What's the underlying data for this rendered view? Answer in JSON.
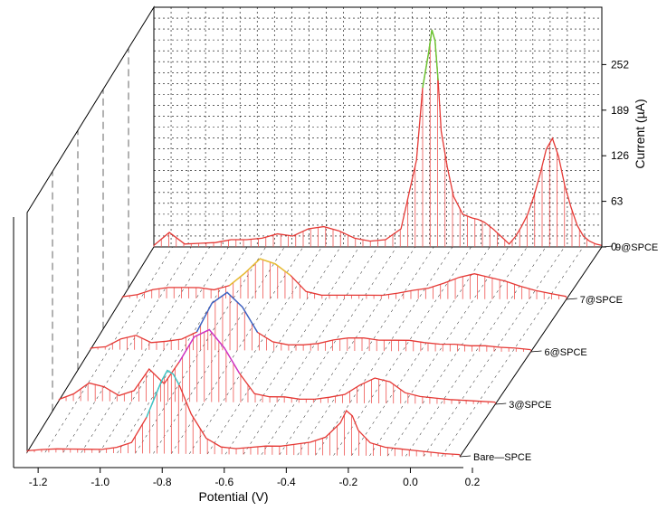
{
  "chart_data": {
    "type": "line",
    "subtype": "3d-waterfall",
    "x_axis": {
      "label": "Potential (V)",
      "range": [
        -1.25,
        0.2
      ],
      "ticks": [
        "-1.2",
        "-1.0",
        "-0.8",
        "-0.6",
        "-0.4",
        "-0.2",
        "0.0",
        "0.2"
      ]
    },
    "z_axis": {
      "label": "Current (µA)",
      "range": [
        0,
        300
      ],
      "ticks": [
        "0",
        "63",
        "126",
        "189",
        "252"
      ]
    },
    "grid": true,
    "series": [
      {
        "name": "9@SPCE",
        "x": [
          -1.25,
          -1.2,
          -1.15,
          -1.1,
          -1.05,
          -1.0,
          -0.95,
          -0.9,
          -0.85,
          -0.8,
          -0.75,
          -0.7,
          -0.65,
          -0.6,
          -0.55,
          -0.5,
          -0.45,
          -0.4,
          -0.38,
          -0.36,
          -0.35,
          -0.34,
          -0.33,
          -0.32,
          -0.3,
          -0.28,
          -0.25,
          -0.22,
          -0.2,
          -0.18,
          -0.15,
          -0.12,
          -0.1,
          -0.08,
          -0.06,
          -0.04,
          -0.02,
          0.0,
          0.02,
          0.04,
          0.06,
          0.08,
          0.1,
          0.12,
          0.14,
          0.16,
          0.18,
          0.2
        ],
        "values": [
          2,
          20,
          4,
          5,
          6,
          10,
          10,
          12,
          18,
          15,
          25,
          28,
          22,
          12,
          8,
          10,
          25,
          120,
          220,
          270,
          300,
          285,
          230,
          160,
          110,
          70,
          45,
          40,
          38,
          34,
          24,
          12,
          4,
          14,
          28,
          45,
          70,
          100,
          135,
          150,
          125,
          85,
          55,
          30,
          15,
          8,
          4,
          2
        ]
      },
      {
        "name": "7@SPCE",
        "x": [
          -1.25,
          -1.2,
          -1.15,
          -1.1,
          -1.05,
          -1.0,
          -0.95,
          -0.9,
          -0.85,
          -0.8,
          -0.75,
          -0.7,
          -0.65,
          -0.6,
          -0.55,
          -0.5,
          -0.45,
          -0.4,
          -0.35,
          -0.3,
          -0.25,
          -0.2,
          -0.15,
          -0.1,
          -0.05,
          0.0,
          0.05,
          0.1,
          0.15,
          0.2
        ],
        "values": [
          2,
          5,
          12,
          15,
          15,
          15,
          12,
          18,
          35,
          55,
          48,
          32,
          10,
          5,
          5,
          5,
          5,
          5,
          8,
          12,
          15,
          22,
          30,
          35,
          30,
          25,
          18,
          12,
          8,
          4
        ]
      },
      {
        "name": "6@SPCE",
        "x": [
          -1.25,
          -1.2,
          -1.15,
          -1.1,
          -1.05,
          -1.0,
          -0.95,
          -0.9,
          -0.85,
          -0.8,
          -0.75,
          -0.7,
          -0.65,
          -0.6,
          -0.55,
          -0.5,
          -0.45,
          -0.4,
          -0.35,
          -0.3,
          -0.25,
          -0.2,
          -0.15,
          -0.1,
          -0.05,
          0.0,
          0.05,
          0.1,
          0.15,
          0.2
        ],
        "values": [
          2,
          4,
          15,
          20,
          10,
          12,
          15,
          25,
          65,
          80,
          60,
          25,
          12,
          8,
          8,
          10,
          15,
          18,
          18,
          15,
          15,
          15,
          12,
          10,
          10,
          8,
          8,
          6,
          5,
          3
        ]
      },
      {
        "name": "3@SPCE",
        "x": [
          -1.25,
          -1.2,
          -1.15,
          -1.1,
          -1.05,
          -1.0,
          -0.95,
          -0.9,
          -0.85,
          -0.8,
          -0.75,
          -0.7,
          -0.65,
          -0.6,
          -0.55,
          -0.5,
          -0.45,
          -0.4,
          -0.35,
          -0.3,
          -0.25,
          -0.2,
          -0.15,
          -0.1,
          -0.05,
          0.0,
          0.05,
          0.1,
          0.15,
          0.2
        ],
        "values": [
          2,
          10,
          25,
          20,
          8,
          15,
          45,
          25,
          55,
          90,
          100,
          75,
          40,
          12,
          8,
          8,
          5,
          5,
          8,
          12,
          25,
          35,
          30,
          15,
          10,
          8,
          6,
          5,
          4,
          3
        ]
      },
      {
        "name": "Bare—SPCE",
        "x": [
          -1.25,
          -1.2,
          -1.15,
          -1.1,
          -1.05,
          -1.0,
          -0.95,
          -0.9,
          -0.85,
          -0.8,
          -0.78,
          -0.76,
          -0.74,
          -0.7,
          -0.65,
          -0.6,
          -0.55,
          -0.5,
          -0.45,
          -0.4,
          -0.35,
          -0.3,
          -0.25,
          -0.2,
          -0.18,
          -0.16,
          -0.14,
          -0.1,
          -0.05,
          0.0,
          0.05,
          0.1,
          0.15,
          0.2
        ],
        "values": [
          2,
          4,
          5,
          5,
          5,
          5,
          8,
          15,
          50,
          100,
          115,
          110,
          95,
          55,
          22,
          10,
          8,
          10,
          12,
          12,
          15,
          18,
          25,
          45,
          62,
          55,
          35,
          18,
          12,
          10,
          8,
          6,
          4,
          3
        ]
      }
    ]
  }
}
